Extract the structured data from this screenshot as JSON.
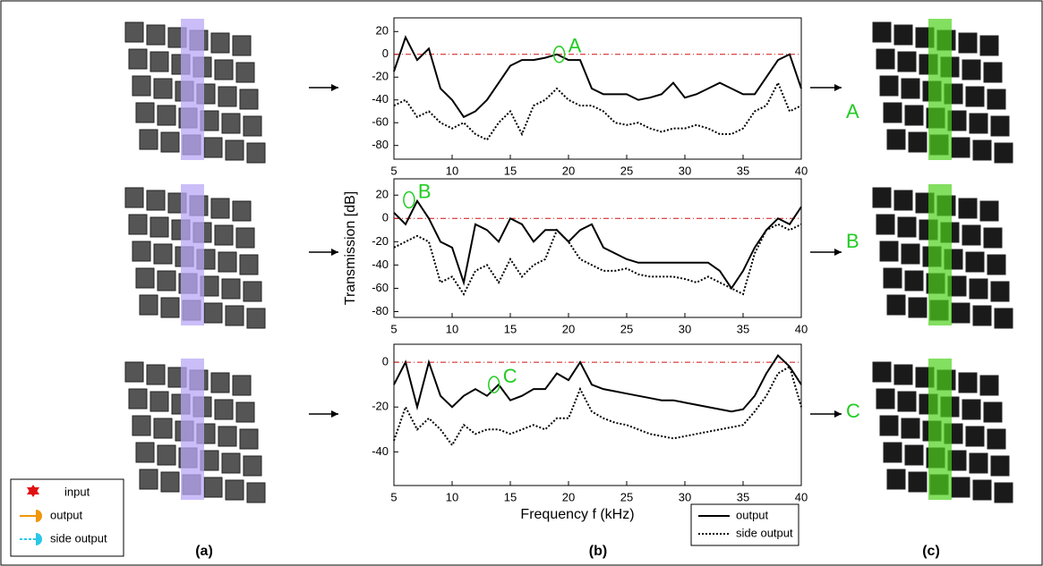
{
  "chart_data": [
    {
      "type": "line",
      "xlim": [
        5,
        40
      ],
      "xticks": [
        5,
        10,
        15,
        20,
        25,
        30,
        35,
        40
      ],
      "ylim": [
        -92,
        32
      ],
      "yticks": [
        20,
        0,
        -20,
        -40,
        -60,
        -80
      ],
      "hline": 0,
      "annotation": {
        "text": "A",
        "x": 19.2,
        "y": 0
      },
      "x": [
        5,
        6,
        7,
        8,
        9,
        10,
        11,
        12,
        13,
        14,
        15,
        16,
        17,
        18,
        19,
        20,
        21,
        22,
        23,
        24,
        25,
        26,
        27,
        28,
        29,
        30,
        31,
        32,
        33,
        34,
        35,
        36,
        37,
        38,
        39,
        40
      ],
      "series": [
        {
          "name": "output",
          "color": "#000000",
          "style": "solid",
          "values": [
            -15,
            15,
            -5,
            5,
            -30,
            -40,
            -55,
            -50,
            -40,
            -25,
            -10,
            -5,
            -5,
            -3,
            0,
            -5,
            -5,
            -30,
            -35,
            -35,
            -35,
            -40,
            -38,
            -35,
            -25,
            -38,
            -35,
            -30,
            -25,
            -30,
            -35,
            -35,
            -20,
            -5,
            0,
            -30
          ]
        },
        {
          "name": "side output",
          "color": "#000000",
          "style": "dotted",
          "values": [
            -45,
            -40,
            -55,
            -50,
            -60,
            -65,
            -60,
            -70,
            -75,
            -60,
            -50,
            -70,
            -45,
            -40,
            -30,
            -40,
            -45,
            -45,
            -50,
            -60,
            -62,
            -60,
            -65,
            -68,
            -65,
            -65,
            -62,
            -65,
            -70,
            -70,
            -65,
            -50,
            -45,
            -25,
            -50,
            -45
          ]
        }
      ]
    },
    {
      "type": "line",
      "xlim": [
        5,
        40
      ],
      "xticks": [
        5,
        10,
        15,
        20,
        25,
        30,
        35,
        40
      ],
      "ylim": [
        -85,
        34
      ],
      "yticks": [
        20,
        0,
        -20,
        -40,
        -60,
        -80
      ],
      "hline": 0,
      "ylabel": "Transmission [dB]",
      "annotation": {
        "text": "B",
        "x": 6.3,
        "y": 16
      },
      "x": [
        5,
        6,
        7,
        8,
        9,
        10,
        11,
        12,
        13,
        14,
        15,
        16,
        17,
        18,
        19,
        20,
        21,
        22,
        23,
        24,
        25,
        26,
        27,
        28,
        29,
        30,
        31,
        32,
        33,
        34,
        35,
        36,
        37,
        38,
        39,
        40
      ],
      "series": [
        {
          "name": "output",
          "color": "#000000",
          "style": "solid",
          "values": [
            5,
            -5,
            15,
            0,
            -20,
            -25,
            -55,
            -5,
            -10,
            -20,
            0,
            -5,
            -20,
            -10,
            -10,
            -20,
            -10,
            -5,
            -25,
            -30,
            -35,
            -38,
            -38,
            -38,
            -38,
            -38,
            -38,
            -38,
            -45,
            -60,
            -45,
            -25,
            -10,
            0,
            -5,
            10
          ]
        },
        {
          "name": "side output",
          "color": "#000000",
          "style": "dotted",
          "values": [
            -25,
            -20,
            -15,
            -20,
            -55,
            -50,
            -65,
            -45,
            -40,
            -55,
            -35,
            -50,
            -40,
            -35,
            -10,
            -20,
            -35,
            -40,
            -45,
            -45,
            -43,
            -48,
            -50,
            -50,
            -50,
            -52,
            -55,
            -50,
            -55,
            -60,
            -65,
            -30,
            -10,
            -5,
            -10,
            -5
          ]
        }
      ]
    },
    {
      "type": "line",
      "xlim": [
        5,
        40
      ],
      "xticks": [
        5,
        10,
        15,
        20,
        25,
        30,
        35,
        40
      ],
      "ylim": [
        -55,
        8
      ],
      "yticks": [
        0,
        -20,
        -40
      ],
      "hline": 0,
      "xlabel": "Frequency f (kHz)",
      "annotation": {
        "text": "C",
        "x": 13.6,
        "y": -10
      },
      "x": [
        5,
        6,
        7,
        8,
        9,
        10,
        11,
        12,
        13,
        14,
        15,
        16,
        17,
        18,
        19,
        20,
        21,
        22,
        23,
        24,
        25,
        26,
        27,
        28,
        29,
        30,
        31,
        32,
        33,
        34,
        35,
        36,
        37,
        38,
        39,
        40
      ],
      "series": [
        {
          "name": "output",
          "color": "#000000",
          "style": "solid",
          "values": [
            -10,
            0,
            -20,
            0,
            -15,
            -20,
            -15,
            -12,
            -15,
            -10,
            -17,
            -15,
            -12,
            -12,
            -5,
            -8,
            0,
            -10,
            -12,
            -13,
            -14,
            -15,
            -16,
            -17,
            -17,
            -18,
            -19,
            -20,
            -21,
            -22,
            -21,
            -15,
            -5,
            3,
            -2,
            -10
          ]
        },
        {
          "name": "side output",
          "color": "#000000",
          "style": "dotted",
          "values": [
            -35,
            -20,
            -30,
            -25,
            -30,
            -37,
            -28,
            -32,
            -30,
            -30,
            -32,
            -30,
            -28,
            -30,
            -25,
            -25,
            -12,
            -22,
            -25,
            -27,
            -28,
            -30,
            -32,
            -33,
            -34,
            -33,
            -32,
            -31,
            -30,
            -29,
            -28,
            -22,
            -15,
            -5,
            -2,
            -20
          ]
        }
      ]
    }
  ],
  "panel_labels": [
    "(a)",
    "(b)",
    "(c)"
  ],
  "schematic_legend": [
    "input",
    "output",
    "side output"
  ]
}
